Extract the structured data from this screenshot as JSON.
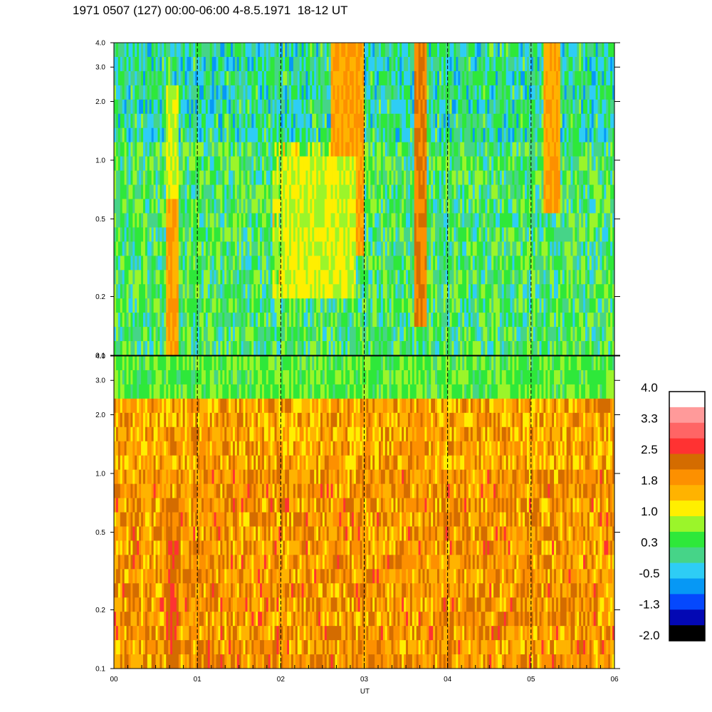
{
  "title": "1971 0507 (127) 00:00-06:00 4-8.5.1971  18-12 UT",
  "chart_data": [
    {
      "type": "heatmap",
      "panel": "upper",
      "y_scale": "log",
      "ylim": [
        0.1,
        4.0
      ],
      "y_ticks": [
        "4.0",
        "3.0",
        "2.0",
        "1.0",
        "0.5",
        "0.2",
        "0.1"
      ],
      "y_tick_values": [
        4.0,
        3.0,
        2.0,
        1.0,
        0.5,
        0.2,
        0.1
      ],
      "xlim": [
        0,
        6
      ],
      "vertical_dashed_lines_at": [
        1,
        2,
        3,
        4,
        5
      ],
      "dominant_level": 0.3,
      "features": [
        {
          "x_start": 0.63,
          "x_end": 0.77,
          "y_from": 0.1,
          "y_to": 0.6,
          "level": 1.8
        },
        {
          "x_start": 0.63,
          "x_end": 0.77,
          "y_from": 0.6,
          "y_to": 2.5,
          "level": 1.0
        },
        {
          "x_start": 2.6,
          "x_end": 3.0,
          "y_from": 0.3,
          "y_to": 4.0,
          "level": 1.8
        },
        {
          "x_start": 2.0,
          "x_end": 2.9,
          "y_from": 0.2,
          "y_to": 1.0,
          "level": 1.0
        },
        {
          "x_start": 3.6,
          "x_end": 3.75,
          "y_from": 0.15,
          "y_to": 4.0,
          "level": 2.2
        },
        {
          "x_start": 5.15,
          "x_end": 5.35,
          "y_from": 0.5,
          "y_to": 4.0,
          "level": 1.8
        }
      ]
    },
    {
      "type": "heatmap",
      "panel": "lower",
      "y_scale": "log",
      "ylim": [
        0.1,
        4.0
      ],
      "y_ticks": [
        "4.0",
        "3.0",
        "2.0",
        "1.0",
        "0.5",
        "0.2",
        "0.1"
      ],
      "y_tick_values": [
        4.0,
        3.0,
        2.0,
        1.0,
        0.5,
        0.2,
        0.1
      ],
      "xlim": [
        0,
        6
      ],
      "x_ticks": [
        "00",
        "01",
        "02",
        "03",
        "04",
        "05",
        "06"
      ],
      "x_tick_values": [
        0,
        1,
        2,
        3,
        4,
        5,
        6
      ],
      "xlabel": "UT",
      "vertical_dashed_lines_at": [
        1,
        2,
        3,
        4,
        5
      ],
      "dominant_level": 1.8,
      "features": [
        {
          "x_start": 0.63,
          "x_end": 0.77,
          "y_from": 0.1,
          "y_to": 0.45,
          "level": 2.5
        },
        {
          "x_start": 0.6,
          "x_end": 0.8,
          "y_from": 0.45,
          "y_to": 0.7,
          "level": 2.2
        },
        {
          "x_start": 3.62,
          "x_end": 3.72,
          "y_from": 1.0,
          "y_to": 4.0,
          "level": 2.2
        },
        {
          "x_start": 0.0,
          "x_end": 6.0,
          "y_from": 2.5,
          "y_to": 4.0,
          "level": 0.5
        }
      ]
    },
    {
      "type": "colorbar",
      "labels": [
        "4.0",
        "3.3",
        "2.5",
        "1.8",
        "1.0",
        "0.3",
        "-0.5",
        "-1.3",
        "-2.0"
      ],
      "colors": [
        "#ffffff",
        "#ff9a9a",
        "#ff6565",
        "#ff3232",
        "#d46c00",
        "#fd9000",
        "#ffb300",
        "#ffef00",
        "#9bf52a",
        "#2ee83a",
        "#46d488",
        "#2ecdf5",
        "#0698f5",
        "#0548fd",
        "#0308b4",
        "#000000"
      ],
      "range": [
        -2.0,
        4.0
      ]
    }
  ]
}
